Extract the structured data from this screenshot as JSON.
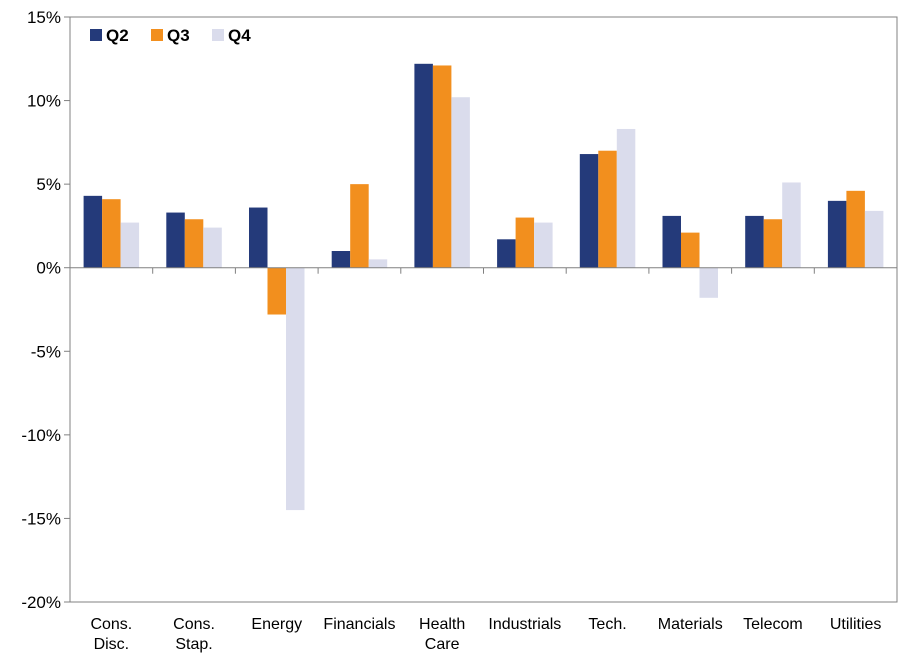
{
  "chart_data": {
    "type": "bar",
    "categories": [
      [
        "Cons.",
        "Disc."
      ],
      [
        "Cons.",
        "Stap."
      ],
      [
        "Energy"
      ],
      [
        "Financials"
      ],
      [
        "Health",
        "Care"
      ],
      [
        "Industrials"
      ],
      [
        "Tech."
      ],
      [
        "Materials"
      ],
      [
        "Telecom"
      ],
      [
        "Utilities"
      ]
    ],
    "series": [
      {
        "name": "Q2",
        "color": "#243a7a",
        "values": [
          4.3,
          3.3,
          3.6,
          1.0,
          12.2,
          1.7,
          6.8,
          3.1,
          3.1,
          4.0
        ]
      },
      {
        "name": "Q3",
        "color": "#f28f1e",
        "values": [
          4.1,
          2.9,
          -2.8,
          5.0,
          12.1,
          3.0,
          7.0,
          2.1,
          2.9,
          4.6
        ]
      },
      {
        "name": "Q4",
        "color": "#dadcec",
        "values": [
          2.7,
          2.4,
          -14.5,
          0.5,
          10.2,
          2.7,
          8.3,
          -1.8,
          5.1,
          3.4
        ]
      }
    ],
    "ylim": [
      -20,
      15
    ],
    "yticks": [
      15,
      10,
      5,
      0,
      -5,
      -10,
      -15,
      -20
    ],
    "ytick_format": "percent",
    "legend_position": "top-left",
    "grid": false
  }
}
